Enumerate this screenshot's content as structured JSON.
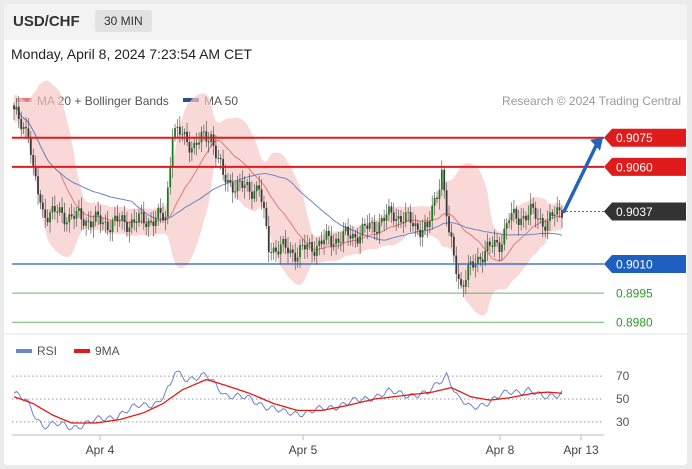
{
  "header": {
    "symbol": "USD/CHF",
    "timeframe": "30 MIN"
  },
  "datetime": "Monday, April 8, 2024 7:23:54 AM CET",
  "legend": {
    "ma20_bb": "MA 20 + Bollinger Bands",
    "ma50": "MA 50",
    "credit": "Research © 2024 Trading Central",
    "rsi": "RSI",
    "rsi_ma": "9MA"
  },
  "colors": {
    "resistance": "#e01b1b",
    "support": "#1f5fbf",
    "level_green": "#2e9a2e",
    "current": "#333333",
    "bands": "#f7c9c6",
    "ma20": "#e07a7a",
    "ma50": "#6b85c8",
    "candles": "#1f7a1f",
    "arrow": "#2565b5"
  },
  "chart_data": [
    {
      "type": "candlestick",
      "x_tick_labels": [
        "Apr 4",
        "Apr 5",
        "Apr 8",
        "Apr 13"
      ],
      "ylim": [
        0.8976,
        0.9097
      ],
      "levels": [
        {
          "label": "0.9075",
          "value": 0.9075,
          "kind": "resistance"
        },
        {
          "label": "0.9060",
          "value": 0.906,
          "kind": "resistance"
        },
        {
          "label": "0.9037",
          "value": 0.9037,
          "kind": "current"
        },
        {
          "label": "0.9010",
          "value": 0.901,
          "kind": "support"
        },
        {
          "label": "0.8995",
          "value": 0.8995,
          "kind": "target"
        },
        {
          "label": "0.8980",
          "value": 0.898,
          "kind": "target"
        }
      ],
      "price_path": [
        [
          0,
          0.9087
        ],
        [
          6,
          0.9079
        ],
        [
          8,
          0.9056
        ],
        [
          12,
          0.9037
        ],
        [
          22,
          0.9035
        ],
        [
          38,
          0.9031
        ],
        [
          52,
          0.9032
        ],
        [
          63,
          0.9034
        ],
        [
          66,
          0.9079
        ],
        [
          75,
          0.9071
        ],
        [
          82,
          0.9077
        ],
        [
          87,
          0.9054
        ],
        [
          95,
          0.9049
        ],
        [
          102,
          0.9049
        ],
        [
          106,
          0.9019
        ],
        [
          118,
          0.9016
        ],
        [
          130,
          0.9022
        ],
        [
          142,
          0.9025
        ],
        [
          150,
          0.903
        ],
        [
          158,
          0.9036
        ],
        [
          164,
          0.9032
        ],
        [
          172,
          0.9027
        ],
        [
          178,
          0.9058
        ],
        [
          181,
          0.9024
        ],
        [
          186,
          0.8999
        ],
        [
          194,
          0.9015
        ],
        [
          202,
          0.9021
        ],
        [
          206,
          0.9033
        ],
        [
          215,
          0.9036
        ],
        [
          222,
          0.9031
        ],
        [
          228,
          0.9039
        ]
      ],
      "annotation": {
        "type": "arrow",
        "from_value": 0.9037,
        "to_value": 0.9075,
        "meaning": "projected move toward resistance"
      },
      "bands": true,
      "grid": false
    },
    {
      "type": "line",
      "name": "RSI panel",
      "y_tick_labels": [
        "70",
        "50",
        "30"
      ],
      "ylim": [
        22,
        78
      ],
      "reference_lines": [
        70,
        50,
        30
      ],
      "series": [
        {
          "name": "RSI",
          "points": [
            [
              0,
              55
            ],
            [
              5,
              48
            ],
            [
              9,
              35
            ],
            [
              12,
              27
            ],
            [
              17,
              28
            ],
            [
              24,
              25
            ],
            [
              32,
              30
            ],
            [
              42,
              35
            ],
            [
              52,
              44
            ],
            [
              60,
              47
            ],
            [
              65,
              60
            ],
            [
              67,
              74
            ],
            [
              72,
              68
            ],
            [
              80,
              70
            ],
            [
              88,
              54
            ],
            [
              98,
              50
            ],
            [
              106,
              43
            ],
            [
              112,
              38
            ],
            [
              122,
              38
            ],
            [
              134,
              44
            ],
            [
              146,
              50
            ],
            [
              156,
              56
            ],
            [
              164,
              54
            ],
            [
              172,
              54
            ],
            [
              180,
              72
            ],
            [
              185,
              50
            ],
            [
              190,
              42
            ],
            [
              198,
              48
            ],
            [
              206,
              56
            ],
            [
              214,
              58
            ],
            [
              220,
              51
            ],
            [
              228,
              56
            ]
          ]
        },
        {
          "name": "9MA",
          "points": [
            [
              0,
              52
            ],
            [
              8,
              46
            ],
            [
              16,
              36
            ],
            [
              24,
              29
            ],
            [
              34,
              29
            ],
            [
              44,
              32
            ],
            [
              54,
              38
            ],
            [
              62,
              46
            ],
            [
              70,
              58
            ],
            [
              80,
              67
            ],
            [
              88,
              62
            ],
            [
              98,
              55
            ],
            [
              108,
              46
            ],
            [
              118,
              40
            ],
            [
              128,
              40
            ],
            [
              138,
              44
            ],
            [
              150,
              50
            ],
            [
              162,
              53
            ],
            [
              174,
              56
            ],
            [
              182,
              60
            ],
            [
              190,
              52
            ],
            [
              198,
              49
            ],
            [
              206,
              51
            ],
            [
              216,
              55
            ],
            [
              222,
              56
            ],
            [
              228,
              55
            ]
          ]
        }
      ]
    }
  ]
}
